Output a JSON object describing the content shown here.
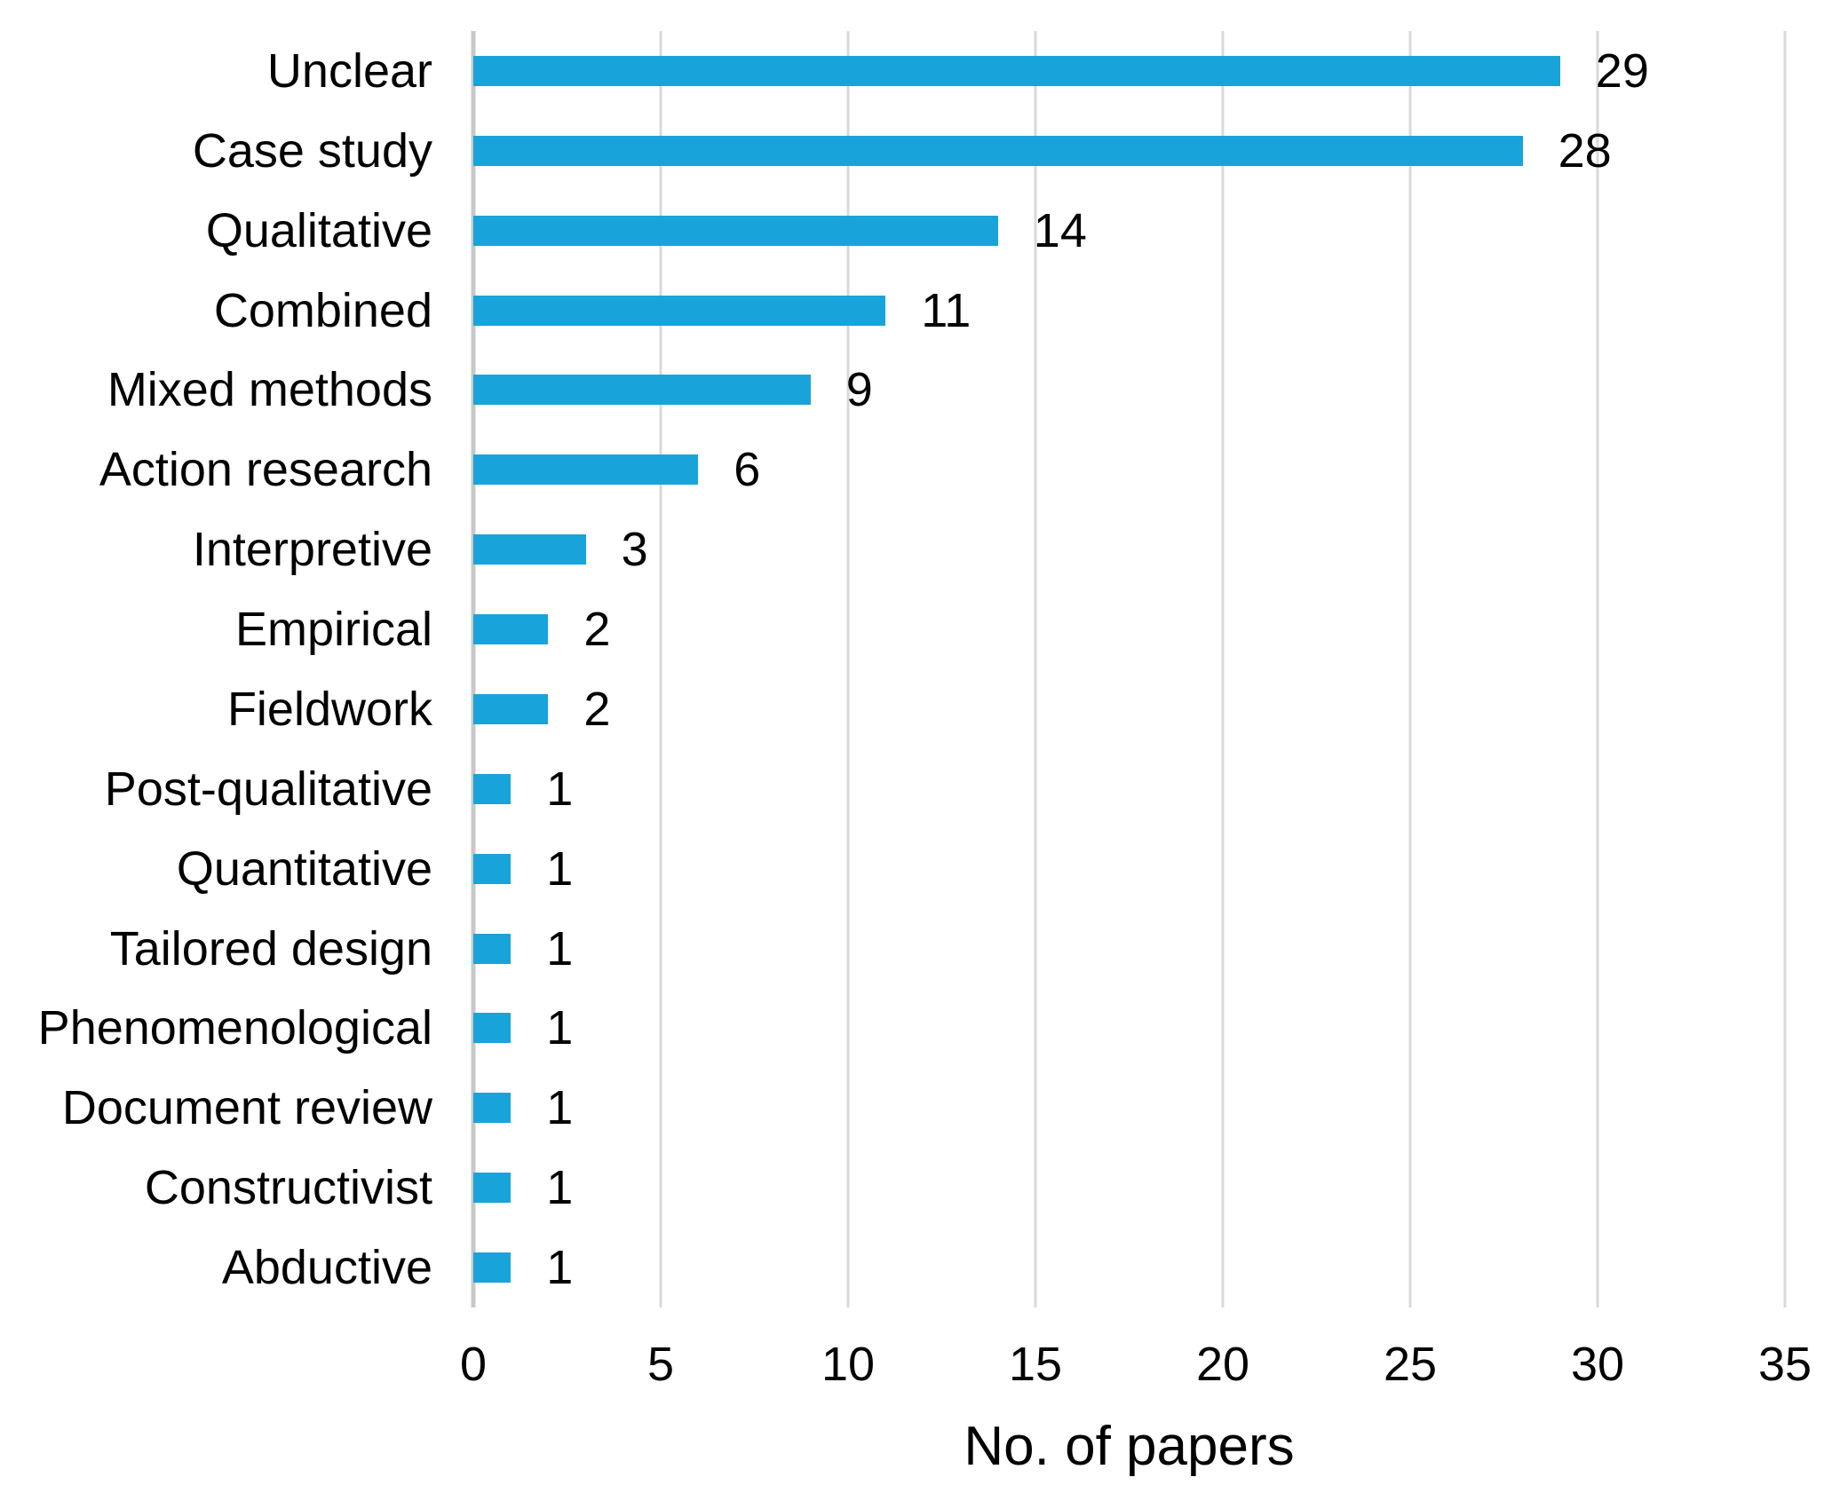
{
  "chart_data": {
    "type": "bar",
    "orientation": "horizontal",
    "title": "",
    "xlabel": "No. of papers",
    "ylabel": "",
    "categories": [
      "Unclear",
      "Case study",
      "Qualitative",
      "Combined",
      "Mixed methods",
      "Action research",
      "Interpretive",
      "Empirical",
      "Fieldwork",
      "Post-qualitative",
      "Quantitative",
      "Tailored design",
      "Phenomenological",
      "Document review",
      "Constructivist",
      "Abductive"
    ],
    "values": [
      29,
      28,
      14,
      11,
      9,
      6,
      3,
      2,
      2,
      1,
      1,
      1,
      1,
      1,
      1,
      1
    ],
    "value_labels": [
      "29",
      "28",
      "14",
      "11",
      "9",
      "6",
      "3",
      "2",
      "2",
      "1",
      "1",
      "1",
      "1",
      "1",
      "1",
      "1"
    ],
    "xlim": [
      0,
      35
    ],
    "xticks": [
      0,
      5,
      10,
      15,
      20,
      25,
      30,
      35
    ],
    "xtick_labels": [
      "0",
      "5",
      "10",
      "15",
      "20",
      "25",
      "30",
      "35"
    ],
    "grid": "vertical",
    "legend": "none",
    "data_labels_position": "outside-end",
    "colors": {
      "bar": "#19a3db",
      "gridline": "#d9d9d9",
      "axis_line": "#c8c8c8",
      "text": "#000000",
      "background": "#ffffff"
    }
  }
}
